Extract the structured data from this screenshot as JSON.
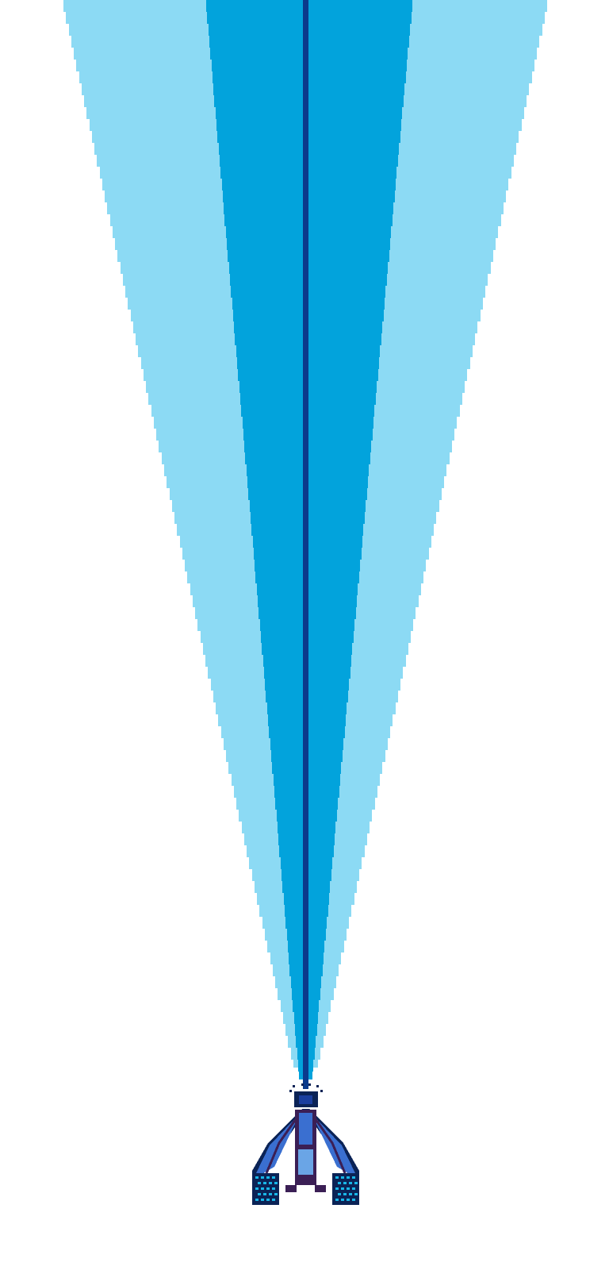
{
  "scene": {
    "background": "#ffffff",
    "beam": {
      "outer_color": "#8cdaf4",
      "inner_color": "#02a3dc",
      "core_color": "#0b3a8c"
    },
    "ship": {
      "wing_color": "#3a6fd0",
      "outline_color": "#0b2356",
      "trim_color": "#3b1f55",
      "canopy_color": "#6aa5e6",
      "engine_color": "#18b6e8",
      "emitter_color": "#1a3e9e"
    }
  }
}
